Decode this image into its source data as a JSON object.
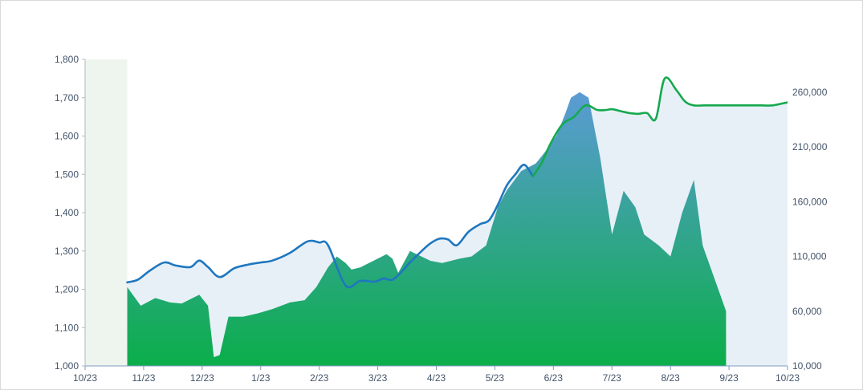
{
  "chart_data": {
    "type": "line",
    "title": "",
    "xlabel": "",
    "ylabel": "",
    "x_ticks": [
      "10/23",
      "11/23",
      "12/23",
      "1/23",
      "2/23",
      "3/23",
      "4/23",
      "5/23",
      "6/23",
      "7/23",
      "8/23",
      "9/23",
      "10/23"
    ],
    "y_left": {
      "ticks": [
        1000,
        1100,
        1200,
        1300,
        1400,
        1500,
        1600,
        1700,
        1800
      ],
      "tick_labels": [
        "1,000",
        "1,100",
        "1,200",
        "1,300",
        "1,400",
        "1,500",
        "1,600",
        "1,700",
        "1,800"
      ],
      "ylim": [
        1000,
        1800
      ]
    },
    "y_right": {
      "ticks": [
        10000,
        60000,
        110000,
        160000,
        210000,
        260000
      ],
      "tick_labels": [
        "10,000",
        "60,000",
        "110,000",
        "160,000",
        "210,000",
        "260,000"
      ],
      "ylim": [
        10000,
        290000
      ]
    },
    "highlight_band": {
      "from_tick": 0,
      "to_fraction_of_first_interval": 0.72
    },
    "series": [
      {
        "role": "line",
        "axis": "left",
        "x": [
          0.72,
          0.9,
          1.1,
          1.35,
          1.55,
          1.8,
          1.95,
          2.1,
          2.3,
          2.55,
          2.8,
          3.0,
          3.2,
          3.5,
          3.8,
          4.0,
          4.15,
          4.45,
          4.7,
          4.95,
          5.1,
          5.25,
          5.4,
          5.55,
          5.75,
          5.9,
          6.05,
          6.2,
          6.35,
          6.55,
          6.75,
          6.9,
          7.05,
          7.2,
          7.35,
          7.5,
          7.65,
          7.8,
          7.95,
          8.15,
          8.35,
          8.55,
          8.75,
          8.9,
          9.0,
          9.15,
          9.3,
          9.45,
          9.6,
          9.75,
          9.9,
          10.1,
          10.25,
          10.4,
          10.6,
          10.8,
          11.0,
          11.15,
          11.35,
          11.55,
          11.75,
          12.0
        ],
        "values": [
          1218,
          1225,
          1248,
          1270,
          1262,
          1258,
          1275,
          1258,
          1232,
          1255,
          1265,
          1270,
          1275,
          1295,
          1325,
          1322,
          1315,
          1210,
          1222,
          1220,
          1228,
          1225,
          1245,
          1270,
          1300,
          1320,
          1332,
          1330,
          1315,
          1350,
          1370,
          1380,
          1420,
          1470,
          1500,
          1525,
          1495,
          1530,
          1580,
          1630,
          1650,
          1680,
          1668,
          1668,
          1670,
          1665,
          1660,
          1658,
          1660,
          1645,
          1750,
          1720,
          1690,
          1680,
          1680,
          1680,
          1680,
          1680,
          1680,
          1680,
          1680,
          1688
        ],
        "segments": [
          {
            "upto_x": 7.6,
            "color": "#1f77bf"
          },
          {
            "upto_x": 12.0,
            "color": "#16a94f"
          }
        ]
      },
      {
        "role": "area",
        "axis": "right",
        "x": [
          0.72,
          0.95,
          1.2,
          1.45,
          1.65,
          1.95,
          2.1,
          2.2,
          2.3,
          2.45,
          2.7,
          2.95,
          3.2,
          3.5,
          3.75,
          3.95,
          4.15,
          4.3,
          4.45,
          4.55,
          4.7,
          5.0,
          5.15,
          5.25,
          5.35,
          5.55,
          5.9,
          6.1,
          6.4,
          6.6,
          6.85,
          7.05,
          7.2,
          7.45,
          7.7,
          7.85,
          8.05,
          8.2,
          8.3,
          8.45,
          8.6,
          8.8,
          9.0,
          9.2,
          9.4,
          9.55,
          9.8,
          10.0,
          10.2,
          10.4,
          10.55,
          10.75,
          10.95
        ],
        "values": [
          82000,
          65000,
          72000,
          68000,
          67000,
          75000,
          65000,
          18000,
          20000,
          55000,
          55000,
          58000,
          62000,
          68000,
          70000,
          82000,
          100000,
          110000,
          104000,
          98000,
          100000,
          108000,
          112000,
          108000,
          95000,
          115000,
          106000,
          104000,
          108000,
          110000,
          120000,
          155000,
          170000,
          188000,
          195000,
          205000,
          220000,
          240000,
          255000,
          260000,
          255000,
          200000,
          130000,
          170000,
          155000,
          130000,
          120000,
          110000,
          150000,
          180000,
          120000,
          90000,
          60000
        ],
        "fill_gradient": [
          "#5b9bd5",
          "#0bae4a"
        ]
      }
    ]
  }
}
